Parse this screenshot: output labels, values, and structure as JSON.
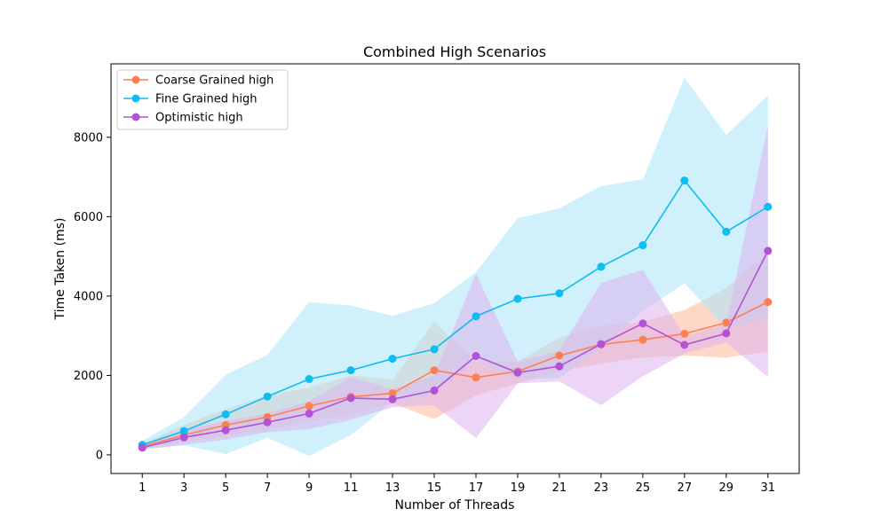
{
  "chart_data": {
    "type": "line",
    "title": "Combined High Scenarios",
    "xlabel": "Number of Threads",
    "ylabel": "Time Taken (ms)",
    "x": [
      1,
      3,
      5,
      7,
      9,
      11,
      13,
      15,
      17,
      19,
      21,
      23,
      25,
      27,
      29,
      31
    ],
    "xlim": [
      -0.5,
      32.5
    ],
    "ylim": [
      -470,
      9850
    ],
    "yticks": [
      0,
      2000,
      4000,
      6000,
      8000
    ],
    "grid": false,
    "legend_position": "top-left",
    "series": [
      {
        "name": "Coarse Grained high",
        "color": "#ff7f50",
        "band_color": "#ffb79c",
        "values": [
          210,
          500,
          750,
          950,
          1230,
          1460,
          1550,
          2130,
          1950,
          2100,
          2500,
          2780,
          2900,
          3050,
          3330,
          3850
        ],
        "band_upper": [
          280,
          750,
          1150,
          1500,
          1700,
          2000,
          1900,
          3350,
          2350,
          2350,
          2950,
          3250,
          3350,
          3650,
          4200,
          5100
        ],
        "band_lower": [
          160,
          320,
          470,
          620,
          850,
          1000,
          1300,
          900,
          1500,
          1800,
          2100,
          2300,
          2450,
          2500,
          2450,
          2600
        ]
      },
      {
        "name": "Fine Grained high",
        "color": "#0dbcf0",
        "band_color": "#a9e6f8",
        "values": [
          250,
          600,
          1020,
          1470,
          1910,
          2130,
          2420,
          2660,
          3490,
          3930,
          4070,
          4740,
          5280,
          6910,
          5620,
          6250
        ],
        "band_upper": [
          350,
          950,
          2020,
          2520,
          3850,
          3760,
          3500,
          3820,
          4600,
          5960,
          6210,
          6770,
          6940,
          9500,
          8060,
          9050
        ],
        "band_lower": [
          140,
          240,
          20,
          430,
          -30,
          500,
          1330,
          1520,
          2380,
          1900,
          1930,
          2710,
          3620,
          4320,
          3180,
          3450
        ]
      },
      {
        "name": "Optimistic high",
        "color": "#b452d6",
        "band_color": "#dcb3ec",
        "values": [
          180,
          440,
          620,
          820,
          1040,
          1430,
          1400,
          1620,
          2490,
          2070,
          2230,
          2790,
          3310,
          2770,
          3060,
          5140
        ],
        "band_upper": [
          240,
          620,
          850,
          1050,
          1350,
          1960,
          1650,
          2000,
          4560,
          2350,
          2620,
          4330,
          4660,
          3000,
          3300,
          8300
        ],
        "band_lower": [
          130,
          250,
          380,
          570,
          650,
          880,
          1200,
          1250,
          420,
          1800,
          1850,
          1250,
          1980,
          2550,
          2830,
          1960
        ]
      }
    ]
  }
}
